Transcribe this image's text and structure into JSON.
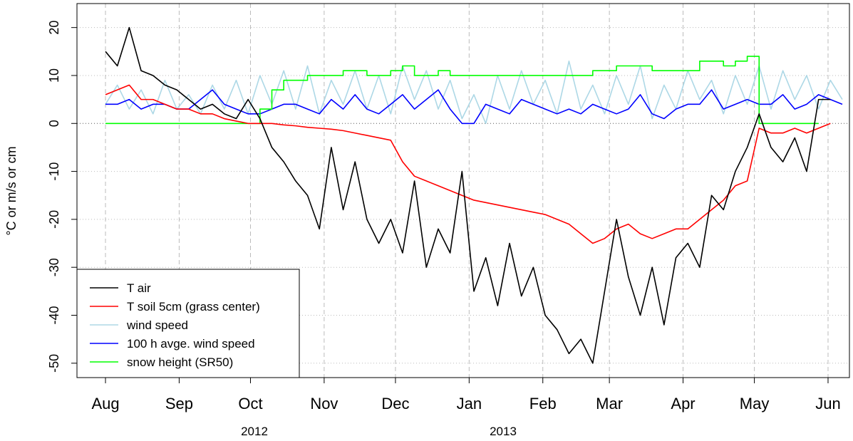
{
  "chart_data": {
    "type": "line",
    "y_label": "°C or m/s or cm",
    "year_labels": [
      "2012",
      "2013"
    ],
    "x": [
      0,
      5,
      10,
      15,
      20,
      25,
      30,
      35,
      40,
      45,
      50,
      55,
      60,
      65,
      70,
      75,
      80,
      85,
      90,
      95,
      100,
      105,
      110,
      115,
      120,
      125,
      130,
      135,
      140,
      145,
      150,
      155,
      160,
      165,
      170,
      175,
      180,
      185,
      190,
      195,
      200,
      205,
      210,
      215,
      220,
      225,
      230,
      235,
      240,
      245,
      250,
      255,
      260,
      265,
      270,
      275,
      280,
      285,
      290,
      295,
      300,
      305,
      310
    ],
    "xlim": [
      -12,
      313
    ],
    "xticks": [
      {
        "value": 0,
        "label": "Aug"
      },
      {
        "value": 31,
        "label": "Sep"
      },
      {
        "value": 61,
        "label": "Oct"
      },
      {
        "value": 92,
        "label": "Nov"
      },
      {
        "value": 122,
        "label": "Dec"
      },
      {
        "value": 153,
        "label": "Jan"
      },
      {
        "value": 184,
        "label": "Feb"
      },
      {
        "value": 212,
        "label": "Mar"
      },
      {
        "value": 243,
        "label": "Apr"
      },
      {
        "value": 273,
        "label": "May"
      },
      {
        "value": 304,
        "label": "Jun"
      }
    ],
    "ylim": [
      -53,
      25
    ],
    "yticks": [
      -50,
      -40,
      -30,
      -20,
      -10,
      0,
      10,
      20
    ],
    "grid": true,
    "legend": "bottom-left",
    "series": [
      {
        "name": "T air",
        "color": "#000000",
        "values": [
          15,
          12,
          20,
          11,
          10,
          8,
          7,
          5,
          3,
          4,
          2,
          1,
          5,
          1,
          -5,
          -8,
          -12,
          -15,
          -22,
          -5,
          -18,
          -8,
          -20,
          -25,
          -20,
          -27,
          -12,
          -30,
          -22,
          -27,
          -10,
          -35,
          -28,
          -38,
          -25,
          -36,
          -30,
          -40,
          -43,
          -48,
          -45,
          -50,
          -35,
          -20,
          -32,
          -40,
          -30,
          -42,
          -28,
          -25,
          -30,
          -15,
          -18,
          -10,
          -5,
          2,
          -5,
          -8,
          -3,
          -10,
          5,
          5,
          null
        ]
      },
      {
        "name": "T soil 5cm (grass center)",
        "color": "#ff0000",
        "values": [
          6,
          7,
          8,
          5,
          5,
          4,
          3,
          3,
          2,
          2,
          1,
          0.5,
          0,
          0,
          0,
          -0.3,
          -0.5,
          -0.8,
          -1,
          -1.2,
          -1.5,
          -2,
          -2.5,
          -3,
          -3.5,
          -8,
          -11,
          -12,
          -13,
          -14,
          -15,
          -16,
          -16.5,
          -17,
          -17.5,
          -18,
          -18.5,
          -19,
          -20,
          -21,
          -23,
          -25,
          -24,
          -22,
          -21,
          -23,
          -24,
          -23,
          -22,
          -22,
          -20,
          -18,
          -16,
          -13,
          -12,
          -1,
          -2,
          -2,
          -1,
          -2,
          -1,
          0,
          null
        ]
      },
      {
        "name": "wind speed",
        "color": "#add8e6",
        "values": [
          4,
          8,
          3,
          7,
          2,
          9,
          3,
          6,
          2,
          8,
          3,
          9,
          2,
          10,
          4,
          11,
          3,
          12,
          2,
          9,
          4,
          11,
          3,
          10,
          2,
          12,
          5,
          11,
          3,
          9,
          1,
          6,
          0,
          10,
          3,
          11,
          4,
          9,
          2,
          13,
          3,
          8,
          2,
          10,
          4,
          12,
          1,
          8,
          3,
          11,
          5,
          9,
          2,
          10,
          4,
          12,
          3,
          11,
          5,
          10,
          3,
          9,
          5
        ]
      },
      {
        "name": "100 h avge. wind speed",
        "color": "#0000ff",
        "values": [
          4,
          4,
          5,
          3,
          4,
          4,
          3,
          3,
          5,
          7,
          4,
          3,
          2,
          2,
          3,
          4,
          4,
          3,
          2,
          5,
          3,
          6,
          3,
          2,
          4,
          6,
          3,
          5,
          7,
          3,
          0,
          0,
          4,
          3,
          2,
          5,
          4,
          3,
          2,
          3,
          2,
          4,
          3,
          2,
          3,
          6,
          2,
          1,
          3,
          4,
          4,
          7,
          3,
          4,
          5,
          4,
          4,
          6,
          3,
          4,
          6,
          5,
          4
        ]
      },
      {
        "name": "snow height (SR50)",
        "color": "#00ff00",
        "steps": true,
        "values": [
          0,
          0,
          0,
          0,
          0,
          0,
          0,
          0,
          0,
          0,
          0,
          0,
          0,
          3,
          7,
          9,
          9,
          10,
          10,
          10,
          11,
          11,
          10,
          10,
          11,
          12,
          10,
          10,
          11,
          10,
          10,
          10,
          10,
          10,
          10,
          10,
          10,
          10,
          10,
          10,
          10,
          11,
          11,
          12,
          12,
          12,
          11,
          11,
          11,
          11,
          13,
          13,
          12,
          13,
          14,
          0,
          0,
          0,
          0,
          0,
          0,
          null,
          null
        ]
      }
    ]
  }
}
